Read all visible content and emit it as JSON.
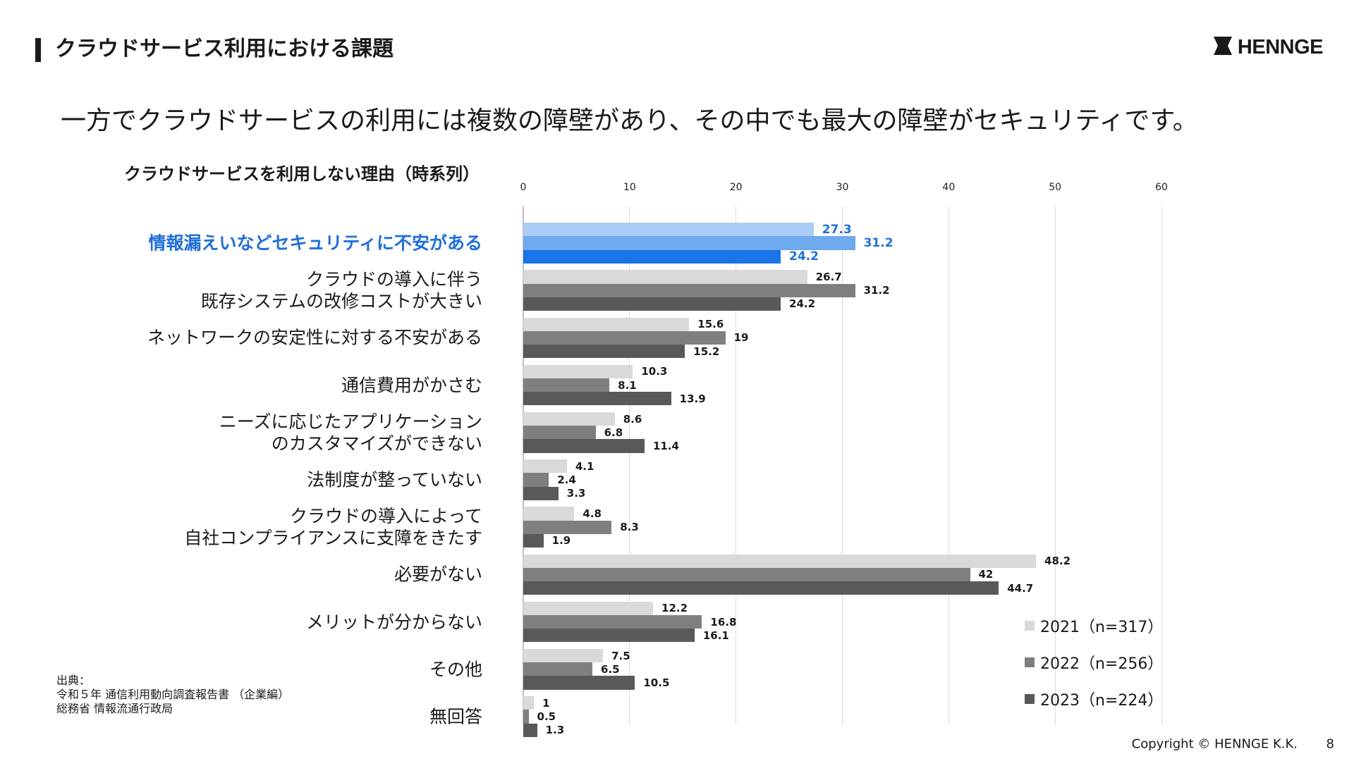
{
  "header": {
    "title": "クラウドサービス利用における課題",
    "logo_text": "HENNGE",
    "logo_icon": "henngge-mark-icon"
  },
  "subtitle": "一方でクラウドサービスの利用には複数の障壁があり、その中でも最大の障壁がセキュリティです。",
  "chart_data": {
    "type": "bar",
    "orientation": "horizontal",
    "title": "クラウドサービスを利用しない理由（時系列）",
    "xlim": [
      0,
      60
    ],
    "x_ticks": [
      "0",
      "10",
      "20",
      "30",
      "40",
      "50",
      "60"
    ],
    "grid": true,
    "legend_position": "bottom-right",
    "categories": [
      [
        "情報漏えいなどセキュリティに不安がある"
      ],
      [
        "クラウドの導入に伴う",
        "既存システムの改修コストが大きい"
      ],
      [
        "ネットワークの安定性に対する不安がある"
      ],
      [
        "通信費用がかさむ"
      ],
      [
        "ニーズに応じたアプリケーション",
        "のカスタマイズができない"
      ],
      [
        "法制度が整っていない"
      ],
      [
        "クラウドの導入によって",
        "自社コンプライアンスに支障をきたす"
      ],
      [
        "必要がない"
      ],
      [
        "メリットが分からない"
      ],
      [
        "その他"
      ],
      [
        "無回答"
      ]
    ],
    "highlight_index": 0,
    "series": [
      {
        "name": "2021（n=317）",
        "color": "#d9d9d9",
        "highlight_color": "#a9cdf7",
        "values": [
          27.3,
          26.7,
          15.6,
          10.3,
          8.6,
          4.1,
          4.8,
          48.2,
          12.2,
          7.5,
          1
        ],
        "labels": [
          "27.3",
          "26.7",
          "15.6",
          "10.3",
          "8.6",
          "4.1",
          "4.8",
          "48.2",
          "12.2",
          "7.5",
          "1"
        ]
      },
      {
        "name": "2022（n=256）",
        "color": "#7f7f7f",
        "highlight_color": "#6fa9ee",
        "values": [
          31.2,
          31.2,
          19,
          8.1,
          6.8,
          2.4,
          8.3,
          42,
          16.8,
          6.5,
          0.5
        ],
        "labels": [
          "31.2",
          "31.2",
          "19",
          "8.1",
          "6.8",
          "2.4",
          "8.3",
          "42",
          "16.8",
          "6.5",
          "0.5"
        ]
      },
      {
        "name": "2023（n=224）",
        "color": "#595959",
        "highlight_color": "#1a73e8",
        "values": [
          24.2,
          24.2,
          15.2,
          13.9,
          11.4,
          3.3,
          1.9,
          44.7,
          16.1,
          10.5,
          1.3
        ],
        "labels": [
          "24.2",
          "24.2",
          "15.2",
          "13.9",
          "11.4",
          "3.3",
          "1.9",
          "44.7",
          "16.1",
          "10.5",
          "1.3"
        ]
      }
    ]
  },
  "source": {
    "line1": "出典：",
    "line2": "令和５年 通信利用動向調査報告書 （企業編）",
    "line3": "総務省 情報流通行政局"
  },
  "footer": {
    "copyright": "Copyright © HENNGE K.K.",
    "page_number": "8"
  }
}
